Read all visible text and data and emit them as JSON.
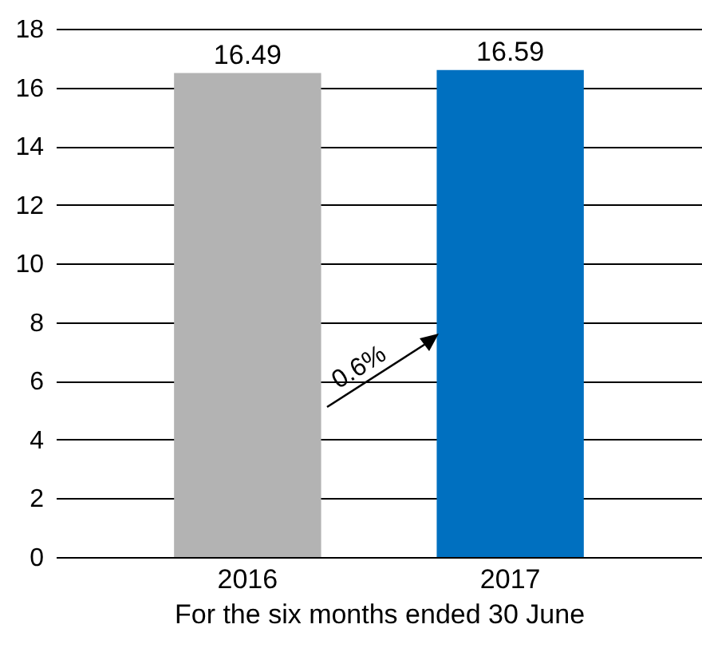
{
  "chart_data": {
    "type": "bar",
    "xlabel": "For the six months ended 30 June",
    "categories": [
      "2016",
      "2017"
    ],
    "values": [
      16.49,
      16.59
    ],
    "colors": [
      "#b3b3b3",
      "#0070c0"
    ],
    "ylim": [
      0,
      18
    ],
    "yticks": [
      0,
      2,
      4,
      6,
      8,
      10,
      12,
      14,
      16,
      18
    ],
    "grid": "y",
    "data_labels": true,
    "annotations": [
      "0.6%"
    ]
  }
}
